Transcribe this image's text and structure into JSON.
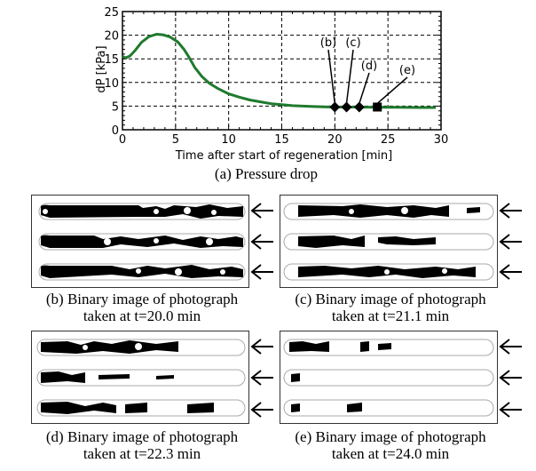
{
  "figure": {
    "caption_a": "(a) Pressure drop",
    "panels": [
      {
        "id": "b",
        "caption_line1": "(b) Binary image of photograph",
        "caption_line2": "taken at t=20.0 min"
      },
      {
        "id": "c",
        "caption_line1": "(c) Binary image of photograph",
        "caption_line2": "taken at t=21.1 min"
      },
      {
        "id": "d",
        "caption_line1": "(d) Binary image of photograph",
        "caption_line2": "taken at t=22.3 min"
      },
      {
        "id": "e",
        "caption_line1": "(e) Binary image of photograph",
        "caption_line2": "taken at t=24.0 min"
      }
    ]
  },
  "chart_data": {
    "type": "line",
    "title": "",
    "xlabel": "Time after start of regeneration [min]",
    "ylabel": "dP [kPa]",
    "xlim": [
      0,
      30
    ],
    "ylim": [
      0,
      25
    ],
    "xticks": [
      "0",
      "5",
      "10",
      "15",
      "20",
      "25",
      "30"
    ],
    "yticks": [
      "0",
      "5",
      "10",
      "15",
      "20",
      "25"
    ],
    "grid": true,
    "line_color": "#1f7a2e",
    "series": [
      {
        "x": [
          0,
          0.3,
          0.7,
          1.2,
          1.8,
          2.5,
          3.2,
          3.8,
          4.5,
          5.2,
          5.8,
          6.3,
          6.8,
          7.5,
          8.2,
          9,
          10,
          11,
          12,
          13,
          14,
          15,
          16,
          17,
          18,
          19,
          20,
          22,
          24,
          26,
          28,
          29.5
        ],
        "y": [
          15.5,
          15.2,
          15.6,
          16.8,
          18.5,
          19.7,
          20.2,
          20.1,
          19.6,
          18.6,
          17,
          15.2,
          13.2,
          11.2,
          9.8,
          8.7,
          7.6,
          6.9,
          6.3,
          5.9,
          5.5,
          5.3,
          5.1,
          5.0,
          4.9,
          4.85,
          4.8,
          4.8,
          4.75,
          4.75,
          4.7,
          4.7
        ]
      }
    ],
    "markers": [
      {
        "label": "(b)",
        "x": 20.0,
        "y": 4.8
      },
      {
        "label": "(c)",
        "x": 21.1,
        "y": 4.8
      },
      {
        "label": "(d)",
        "x": 22.3,
        "y": 4.8
      },
      {
        "label": "(e)",
        "x": 24.0,
        "y": 4.8
      }
    ]
  }
}
